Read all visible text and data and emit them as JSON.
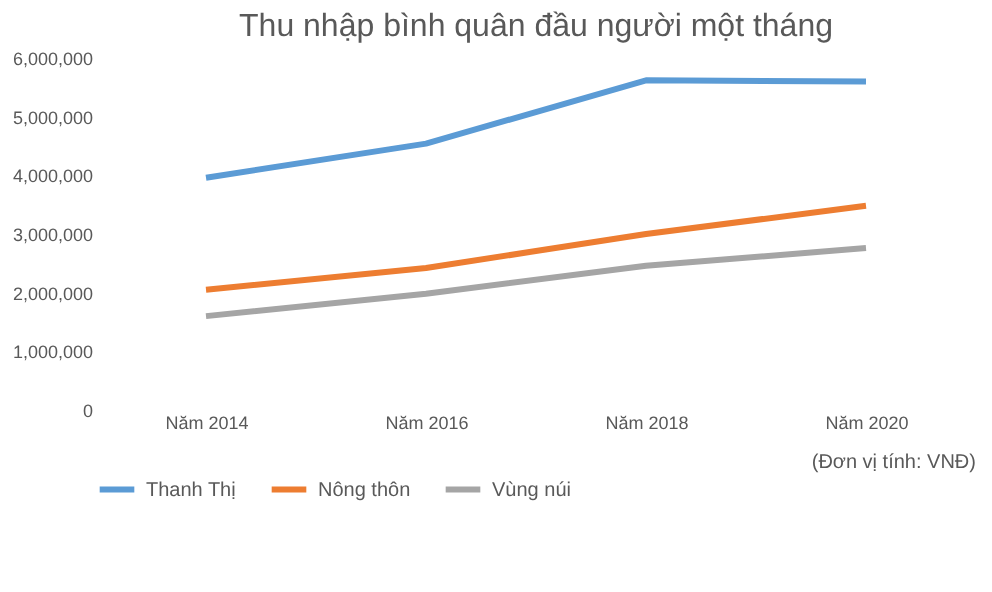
{
  "chart_data": {
    "type": "line",
    "title": "Thu nhập bình quân đầu người một tháng",
    "categories": [
      "Năm 2014",
      "Năm 2016",
      "Năm 2018",
      "Năm 2020"
    ],
    "series": [
      {
        "name": "Thanh Thị",
        "color": "#5b9bd5",
        "values": [
          3960000,
          4540000,
          5620000,
          5600000
        ]
      },
      {
        "name": "Nông thôn",
        "color": "#ed7d31",
        "values": [
          2050000,
          2420000,
          3000000,
          3480000
        ]
      },
      {
        "name": "Vùng núi",
        "color": "#a5a5a5",
        "values": [
          1600000,
          1980000,
          2460000,
          2760000
        ]
      }
    ],
    "ylim": [
      0,
      6000000
    ],
    "yticks": [
      0,
      {
        "value": 1000000,
        "label": "1,000,000"
      },
      {
        "value": 2000000,
        "label": "2,000,000"
      },
      {
        "value": 3000000,
        "label": "3,000,000"
      },
      {
        "value": 4000000,
        "label": "4,000,000"
      },
      {
        "value": 5000000,
        "label": "5,000,000"
      },
      {
        "value": 6000000,
        "label": "6,000,000"
      }
    ],
    "annotations": [
      "(Đơn vị tính: VNĐ)"
    ],
    "legend": "bottom",
    "grid": false,
    "marker": "none",
    "line_style": "solid"
  }
}
